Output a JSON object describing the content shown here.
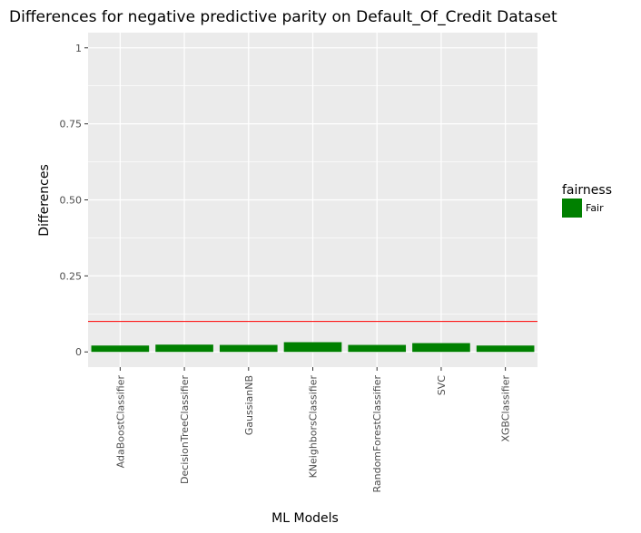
{
  "chart_data": {
    "type": "bar",
    "title": "Differences for negative predictive parity on Default_Of_Credit Dataset",
    "xlabel": "ML Models",
    "ylabel": "Differences",
    "categories": [
      "AdaBoostClassifier",
      "DecisionTreeClassifier",
      "GaussianNB",
      "KNeighborsClassifier",
      "RandomForestClassifier",
      "SVC",
      "XGBClassifier"
    ],
    "series": [
      {
        "name": "Fair",
        "values": [
          0.021,
          0.024,
          0.023,
          0.032,
          0.023,
          0.029,
          0.021
        ],
        "color": "#008000"
      }
    ],
    "ylim": [
      -0.05,
      1.05
    ],
    "yticks": [
      0,
      0.25,
      0.5,
      0.75,
      1
    ],
    "ytick_labels": [
      "0",
      "0.25",
      "0.50",
      "0.75",
      "1"
    ],
    "threshold": {
      "value": 0.1,
      "color": "#ff0000"
    },
    "legend": {
      "title": "fairness",
      "position": "right",
      "entries": [
        {
          "label": "Fair",
          "color": "#008000"
        }
      ]
    },
    "panel_background": "#ebebeb",
    "grid": true,
    "grid_color": "#ffffff"
  }
}
